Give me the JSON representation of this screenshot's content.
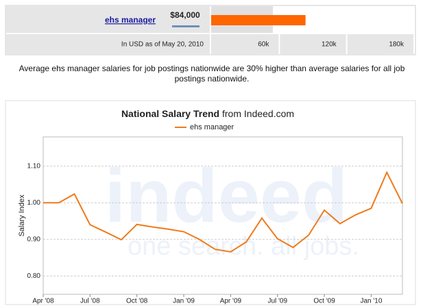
{
  "chart_data": [
    {
      "type": "bar",
      "categories": [
        "ehs manager"
      ],
      "values": [
        84000
      ],
      "value_labels": [
        "$84,000"
      ],
      "color": "#ff6600",
      "xlabel": "In USD as of May 20, 2010",
      "xlim": [
        0,
        180000
      ],
      "xticks": [
        {
          "value": 60000,
          "label": "60k"
        },
        {
          "value": 120000,
          "label": "120k"
        },
        {
          "value": 180000,
          "label": "180k"
        }
      ]
    },
    {
      "type": "line",
      "title": "National Salary Trend",
      "subtitle": "from Indeed.com",
      "ylabel": "Salary Index",
      "categories": [
        "Apr '08",
        null,
        null,
        "Jul '08",
        null,
        null,
        "Oct '08",
        null,
        null,
        "Jan '09",
        null,
        null,
        "Apr '09",
        null,
        null,
        "Jul '09",
        null,
        null,
        "Oct '09",
        null,
        null,
        "Jan '10",
        null,
        null
      ],
      "series": [
        {
          "name": "ehs manager",
          "color": "#f07a1a",
          "values": [
            1.0,
            1.0,
            1.024,
            0.94,
            0.92,
            0.899,
            0.941,
            0.934,
            0.928,
            0.921,
            0.9,
            0.873,
            0.866,
            0.893,
            0.958,
            0.902,
            0.878,
            0.912,
            0.98,
            0.943,
            0.967,
            0.985,
            1.083,
            0.998
          ]
        }
      ],
      "ylim": [
        0.75,
        1.18
      ],
      "yticks": [
        {
          "value": 0.8,
          "label": "0.80"
        },
        {
          "value": 0.9,
          "label": "0.90"
        },
        {
          "value": 1.0,
          "label": "1.00"
        },
        {
          "value": 1.1,
          "label": "1.10"
        }
      ],
      "grid": true,
      "legend": "top"
    }
  ],
  "summary": "Average ehs manager salaries for job postings nationwide are 30% higher than average salaries for all job postings nationwide.",
  "watermark": {
    "logo": "indeed",
    "tagline": "one search. all jobs."
  }
}
